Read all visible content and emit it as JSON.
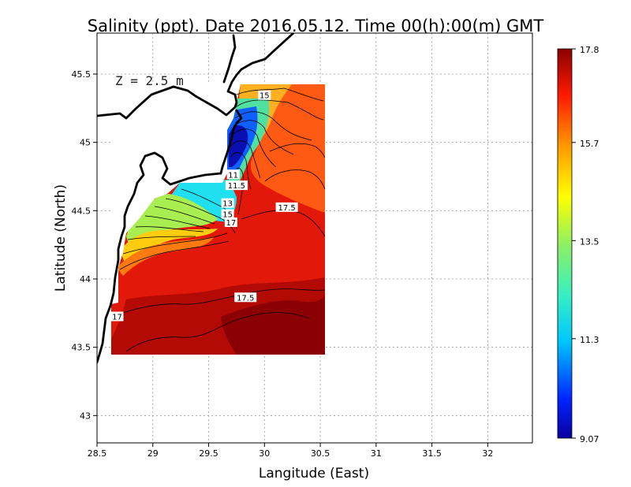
{
  "chart_data": {
    "type": "heatmap",
    "title": "Salinity (ppt). Date 2016.05.12. Time 00(h):00(m) GMT",
    "xlabel": "Langitude (East)",
    "ylabel": "Latitude (North)",
    "annotation": "Z = 2.5 m",
    "xlim": [
      28.5,
      32.4
    ],
    "ylim": [
      42.8,
      45.8
    ],
    "xticks": [
      {
        "value": 28.5,
        "label": "28.5"
      },
      {
        "value": 29,
        "label": "29"
      },
      {
        "value": 29.5,
        "label": "29.5"
      },
      {
        "value": 30,
        "label": "30"
      },
      {
        "value": 30.5,
        "label": "30.5"
      },
      {
        "value": 31,
        "label": "31"
      },
      {
        "value": 31.5,
        "label": "31.5"
      },
      {
        "value": 32,
        "label": "32"
      }
    ],
    "yticks": [
      {
        "value": 43,
        "label": "43"
      },
      {
        "value": 43.5,
        "label": "43.5"
      },
      {
        "value": 44,
        "label": "44"
      },
      {
        "value": 44.5,
        "label": "44.5"
      },
      {
        "value": 45,
        "label": "45"
      },
      {
        "value": 45.5,
        "label": "45.5"
      }
    ],
    "grid": true,
    "colorbar": {
      "min": 9.07,
      "max": 17.8,
      "labels": [
        {
          "value": 17.8,
          "label": "17.8"
        },
        {
          "value": 15.7,
          "label": "15.7"
        },
        {
          "value": 13.5,
          "label": "13.5"
        },
        {
          "value": 11.3,
          "label": "11.3"
        },
        {
          "value": 9.07,
          "label": "9.07"
        }
      ]
    },
    "contour_labels": [
      {
        "text": "15",
        "lon": 30.0,
        "lat": 45.34
      },
      {
        "text": "11",
        "lon": 29.72,
        "lat": 44.76
      },
      {
        "text": "11.5",
        "lon": 29.75,
        "lat": 44.68
      },
      {
        "text": "13",
        "lon": 29.67,
        "lat": 44.55
      },
      {
        "text": "15",
        "lon": 29.67,
        "lat": 44.47
      },
      {
        "text": "17",
        "lon": 29.7,
        "lat": 44.41
      },
      {
        "text": "17.5",
        "lon": 30.2,
        "lat": 44.52
      },
      {
        "text": "17.5",
        "lon": 29.83,
        "lat": 43.86
      },
      {
        "text": "17",
        "lon": 28.68,
        "lat": 43.72
      }
    ],
    "salinity_field": {
      "description_domain": "lon 28.63-30.5, lat 43.5-45.5",
      "features": [
        {
          "name": "low-salinity plume core",
          "lon": 29.75,
          "lat": 45.05,
          "value": 9.5
        },
        {
          "name": "coastal fresh band",
          "lon": 29.4,
          "lat": 44.68,
          "value": 11.8
        },
        {
          "name": "open sea offshore",
          "lon": 30.3,
          "lat": 44.0,
          "value": 17.6
        },
        {
          "name": "northern shelf",
          "lon": 30.3,
          "lat": 45.3,
          "value": 16.3
        }
      ]
    }
  }
}
